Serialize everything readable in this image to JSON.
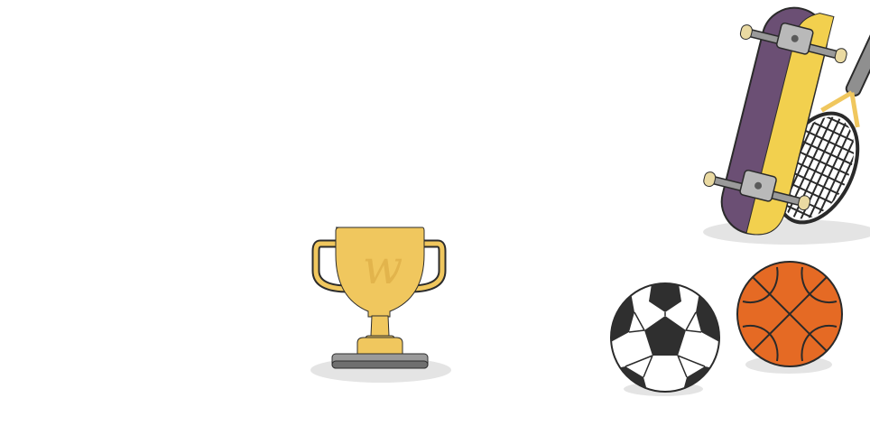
{
  "scene": {
    "background": "#ffffff",
    "items": [
      {
        "name": "trophy",
        "icon": "trophy-icon"
      },
      {
        "name": "skateboard",
        "icon": "skateboard-icon"
      },
      {
        "name": "tennis-racket",
        "icon": "tennis-racket-icon"
      },
      {
        "name": "soccer-ball",
        "icon": "soccer-ball-icon"
      },
      {
        "name": "basketball",
        "icon": "basketball-icon"
      }
    ]
  },
  "colors": {
    "trophy_gold": "#F0C75E",
    "trophy_gold_dark": "#E2B44C",
    "trophy_base": "#9A9A9A",
    "skateboard_purple": "#6B4F74",
    "skateboard_yellow": "#F2D04E",
    "racket_handle": "#8F8F8F",
    "racket_frame": "#2A2A2A",
    "basketball_orange": "#E56A24",
    "soccer_black": "#2F2F2F",
    "shadow": "#E2E2E2"
  }
}
